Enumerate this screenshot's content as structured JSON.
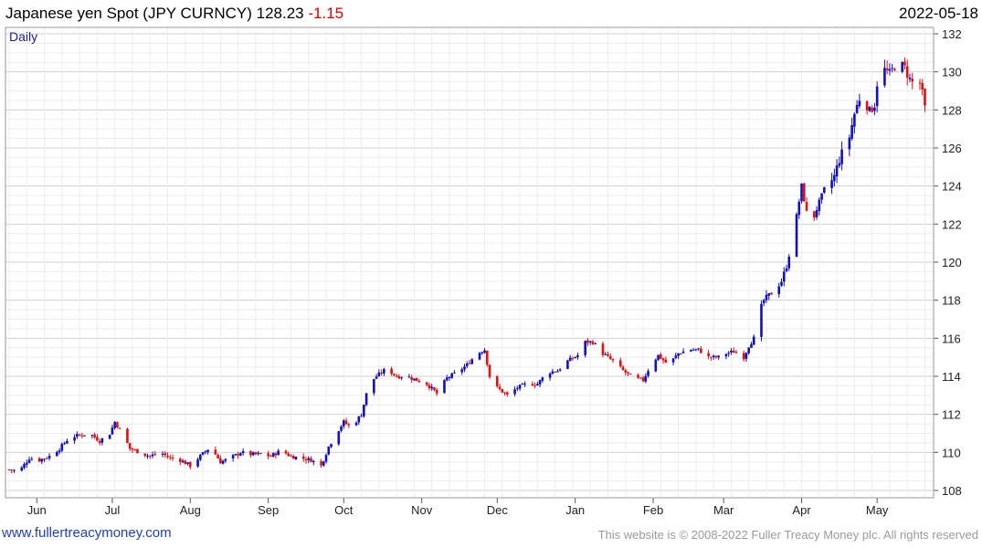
{
  "header": {
    "title": "Japanese yen Spot (JPY CURNCY) 128.23",
    "change": "-1.15",
    "date": "2022-05-18"
  },
  "footer": {
    "website": "www.fullertreacymoney.com",
    "copyright": "This website is © 2008-2022 Fuller Treacy Money plc. All rights reserved"
  },
  "colors": {
    "up": "#1010c0",
    "down": "#e01010",
    "grid": "#d6d6d6",
    "interval_label": "#2020a0"
  },
  "chart_data": {
    "type": "candlestick",
    "interval": "Daily",
    "y_axis": {
      "min": 108,
      "max": 132,
      "ticks": [
        108,
        110,
        112,
        114,
        116,
        118,
        120,
        122,
        124,
        126,
        128,
        130,
        132
      ],
      "side": "right"
    },
    "x_axis": {
      "ticks": [
        {
          "label": "Jun",
          "day": 11
        },
        {
          "label": "Jul",
          "day": 41
        },
        {
          "label": "Aug",
          "day": 72
        },
        {
          "label": "Sep",
          "day": 103
        },
        {
          "label": "Oct",
          "day": 133
        },
        {
          "label": "Nov",
          "day": 164
        },
        {
          "label": "Dec",
          "day": 194
        },
        {
          "label": "Jan",
          "day": 225
        },
        {
          "label": "Feb",
          "day": 256
        },
        {
          "label": "Mar",
          "day": 284
        },
        {
          "label": "Apr",
          "day": 315
        },
        {
          "label": "May",
          "day": 345
        }
      ],
      "range": [
        0,
        366
      ]
    },
    "grid": true,
    "series_points": [
      [
        0,
        109.1
      ],
      [
        4,
        109.0
      ],
      [
        8,
        109.7
      ],
      [
        12,
        109.6
      ],
      [
        16,
        109.8
      ],
      [
        20,
        110.2
      ],
      [
        24,
        110.8
      ],
      [
        28,
        110.9
      ],
      [
        32,
        111.0
      ],
      [
        36,
        110.6
      ],
      [
        40,
        111.0
      ],
      [
        42,
        111.6
      ],
      [
        45,
        111.0
      ],
      [
        48,
        110.2
      ],
      [
        52,
        110.0
      ],
      [
        56,
        109.8
      ],
      [
        60,
        110.0
      ],
      [
        64,
        109.7
      ],
      [
        68,
        109.6
      ],
      [
        72,
        109.3
      ],
      [
        76,
        109.8
      ],
      [
        80,
        110.3
      ],
      [
        84,
        109.5
      ],
      [
        88,
        109.7
      ],
      [
        92,
        110.0
      ],
      [
        96,
        109.9
      ],
      [
        100,
        109.9
      ],
      [
        104,
        109.8
      ],
      [
        108,
        110.1
      ],
      [
        112,
        109.8
      ],
      [
        116,
        109.7
      ],
      [
        120,
        109.6
      ],
      [
        124,
        109.3
      ],
      [
        127,
        110.3
      ],
      [
        130,
        111.0
      ],
      [
        133,
        111.6
      ],
      [
        136,
        111.3
      ],
      [
        140,
        112.0
      ],
      [
        143,
        113.6
      ],
      [
        146,
        114.0
      ],
      [
        150,
        114.4
      ],
      [
        154,
        114.0
      ],
      [
        158,
        114.0
      ],
      [
        162,
        113.8
      ],
      [
        166,
        113.6
      ],
      [
        170,
        113.1
      ],
      [
        174,
        113.9
      ],
      [
        178,
        114.2
      ],
      [
        182,
        114.6
      ],
      [
        186,
        115.2
      ],
      [
        189,
        115.4
      ],
      [
        191,
        114.0
      ],
      [
        194,
        113.4
      ],
      [
        198,
        113.0
      ],
      [
        202,
        113.4
      ],
      [
        206,
        113.6
      ],
      [
        210,
        113.6
      ],
      [
        214,
        114.2
      ],
      [
        218,
        114.3
      ],
      [
        222,
        114.8
      ],
      [
        226,
        115.1
      ],
      [
        229,
        115.8
      ],
      [
        232,
        115.8
      ],
      [
        236,
        115.2
      ],
      [
        240,
        114.8
      ],
      [
        244,
        114.3
      ],
      [
        248,
        113.9
      ],
      [
        252,
        113.8
      ],
      [
        255,
        114.6
      ],
      [
        258,
        115.1
      ],
      [
        262,
        114.6
      ],
      [
        266,
        115.2
      ],
      [
        270,
        115.4
      ],
      [
        274,
        115.4
      ],
      [
        278,
        115.0
      ],
      [
        282,
        115.0
      ],
      [
        285,
        115.2
      ],
      [
        288,
        115.3
      ],
      [
        292,
        115.0
      ],
      [
        294,
        115.6
      ],
      [
        296,
        116.0
      ],
      [
        298,
        117.3
      ],
      [
        300,
        118.0
      ],
      [
        304,
        118.5
      ],
      [
        307,
        119.0
      ],
      [
        309,
        119.8
      ],
      [
        311,
        121.0
      ],
      [
        313,
        122.4
      ],
      [
        315,
        124.0
      ],
      [
        317,
        122.6
      ],
      [
        319,
        122.0
      ],
      [
        321,
        122.8
      ],
      [
        324,
        123.8
      ],
      [
        326,
        124.1
      ],
      [
        328,
        124.5
      ],
      [
        330,
        125.4
      ],
      [
        332,
        126.0
      ],
      [
        334,
        126.6
      ],
      [
        336,
        127.8
      ],
      [
        338,
        128.6
      ],
      [
        340,
        128.6
      ],
      [
        342,
        127.9
      ],
      [
        344,
        128.3
      ],
      [
        346,
        130.5
      ],
      [
        348,
        130.1
      ],
      [
        350,
        129.9
      ],
      [
        352,
        130.3
      ],
      [
        354,
        130.4
      ],
      [
        356,
        130.2
      ],
      [
        358,
        129.6
      ],
      [
        360,
        129.3
      ],
      [
        362,
        129.4
      ],
      [
        364,
        128.23
      ]
    ]
  }
}
